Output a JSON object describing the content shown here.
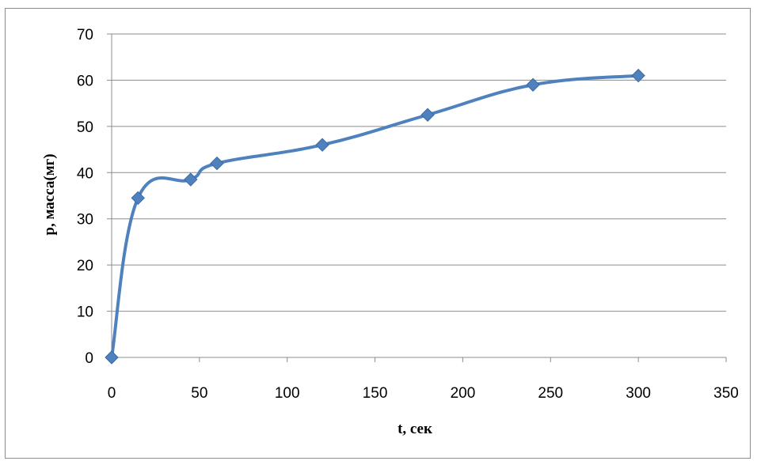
{
  "chart_data": {
    "type": "line",
    "xlabel": "t, сек",
    "ylabel": "р, масса(мг)",
    "xlim": [
      0,
      350
    ],
    "ylim": [
      0,
      70
    ],
    "xticks": [
      0,
      50,
      100,
      150,
      200,
      250,
      300,
      350
    ],
    "yticks": [
      0,
      10,
      20,
      30,
      40,
      50,
      60,
      70
    ],
    "grid": "horizontal",
    "legend": "none",
    "smooth": true,
    "series": [
      {
        "color": "#4f81bd",
        "marker": "diamond",
        "points": [
          {
            "x": 0,
            "y": 0
          },
          {
            "x": 15,
            "y": 34.5
          },
          {
            "x": 45,
            "y": 38.5
          },
          {
            "x": 60,
            "y": 42
          },
          {
            "x": 120,
            "y": 46
          },
          {
            "x": 180,
            "y": 52.5
          },
          {
            "x": 240,
            "y": 59
          },
          {
            "x": 300,
            "y": 61
          }
        ]
      }
    ],
    "colors": {
      "gridline": "#8c8c8c",
      "frame": "#8c8c8c",
      "marker_fill": "#4f81bd",
      "marker_stroke": "#3a6aa5"
    }
  }
}
